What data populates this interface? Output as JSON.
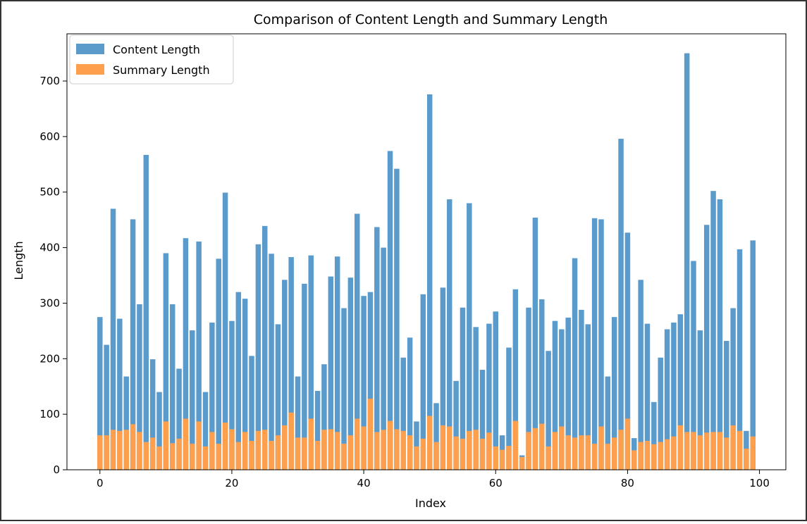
{
  "chart_data": {
    "type": "bar",
    "title": "Comparison of Content Length and Summary Length",
    "xlabel": "Index",
    "ylabel": "Length",
    "xlim": [
      -5,
      104
    ],
    "ylim": [
      0,
      785
    ],
    "xticks": [
      0,
      20,
      40,
      60,
      80,
      100
    ],
    "yticks": [
      0,
      100,
      200,
      300,
      400,
      500,
      600,
      700
    ],
    "legend_position": "top-left",
    "overlay": true,
    "x": [
      0,
      1,
      2,
      3,
      4,
      5,
      6,
      7,
      8,
      9,
      10,
      11,
      12,
      13,
      14,
      15,
      16,
      17,
      18,
      19,
      20,
      21,
      22,
      23,
      24,
      25,
      26,
      27,
      28,
      29,
      30,
      31,
      32,
      33,
      34,
      35,
      36,
      37,
      38,
      39,
      40,
      41,
      42,
      43,
      44,
      45,
      46,
      47,
      48,
      49,
      50,
      51,
      52,
      53,
      54,
      55,
      56,
      57,
      58,
      59,
      60,
      61,
      62,
      63,
      64,
      65,
      66,
      67,
      68,
      69,
      70,
      71,
      72,
      73,
      74,
      75,
      76,
      77,
      78,
      79,
      80,
      81,
      82,
      83,
      84,
      85,
      86,
      87,
      88,
      89,
      90,
      91,
      92,
      93,
      94,
      95,
      96,
      97,
      98,
      99
    ],
    "series": [
      {
        "name": "Content Length",
        "color": "#5b9bcc",
        "values": [
          275,
          225,
          470,
          272,
          168,
          451,
          298,
          567,
          199,
          140,
          390,
          298,
          182,
          417,
          251,
          411,
          140,
          265,
          380,
          499,
          268,
          320,
          308,
          205,
          406,
          439,
          389,
          262,
          342,
          383,
          168,
          335,
          386,
          142,
          190,
          348,
          384,
          291,
          346,
          461,
          313,
          320,
          437,
          400,
          574,
          542,
          202,
          238,
          87,
          316,
          676,
          120,
          328,
          487,
          160,
          292,
          480,
          257,
          180,
          263,
          285,
          62,
          220,
          325,
          26,
          292,
          454,
          307,
          214,
          268,
          253,
          274,
          381,
          288,
          262,
          453,
          451,
          168,
          275,
          596,
          427,
          57,
          342,
          263,
          122,
          202,
          253,
          265,
          280,
          750,
          376,
          251,
          441,
          502,
          487,
          232,
          291,
          397,
          70,
          413
        ]
      },
      {
        "name": "Summary Length",
        "color": "#fe9f4d",
        "values": [
          62,
          62,
          72,
          70,
          72,
          82,
          68,
          50,
          58,
          42,
          87,
          48,
          56,
          92,
          47,
          87,
          42,
          68,
          47,
          85,
          73,
          50,
          68,
          52,
          70,
          72,
          52,
          62,
          80,
          103,
          58,
          58,
          92,
          52,
          72,
          73,
          68,
          47,
          62,
          92,
          78,
          128,
          68,
          72,
          88,
          73,
          70,
          62,
          42,
          56,
          97,
          50,
          80,
          78,
          60,
          56,
          70,
          72,
          56,
          67,
          42,
          36,
          43,
          88,
          23,
          68,
          75,
          83,
          42,
          68,
          78,
          62,
          58,
          62,
          62,
          47,
          78,
          47,
          58,
          72,
          92,
          35,
          50,
          52,
          46,
          50,
          55,
          60,
          80,
          68,
          68,
          62,
          67,
          68,
          68,
          58,
          80,
          70,
          38,
          60
        ]
      }
    ]
  }
}
